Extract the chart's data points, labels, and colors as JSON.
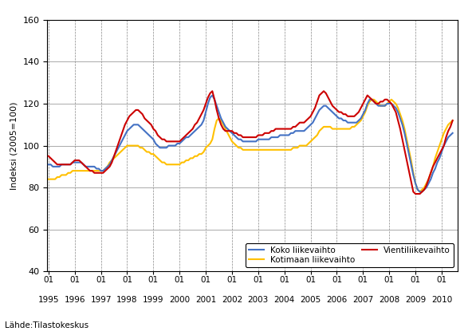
{
  "title": "",
  "ylabel": "Indeksi (2005=100)",
  "xlabel_source": "Lähde:Tilastokeskus",
  "ylim": [
    40,
    160
  ],
  "yticks": [
    40,
    60,
    80,
    100,
    120,
    140,
    160
  ],
  "start_year": 1995,
  "start_month": 1,
  "end_year": 2010,
  "end_month": 6,
  "line_colors": {
    "koko": "#4472C4",
    "kotimaan": "#FFC000",
    "vienti": "#CC0000"
  },
  "line_widths": {
    "koko": 1.5,
    "kotimaan": 1.5,
    "vienti": 1.5
  },
  "legend_labels": {
    "koko": "Koko liikevaihto",
    "kotimaan": "Kotimaan liikevaihto",
    "vienti": "Vientiliikevaihto"
  },
  "koko": [
    91,
    91,
    90,
    90,
    90,
    90,
    91,
    91,
    91,
    91,
    91,
    92,
    92,
    92,
    92,
    92,
    91,
    90,
    90,
    90,
    90,
    90,
    89,
    89,
    88,
    88,
    89,
    90,
    91,
    93,
    95,
    97,
    99,
    101,
    103,
    105,
    107,
    108,
    109,
    110,
    110,
    110,
    109,
    108,
    107,
    106,
    105,
    104,
    103,
    101,
    100,
    99,
    99,
    99,
    99,
    100,
    100,
    100,
    100,
    101,
    101,
    102,
    103,
    104,
    104,
    105,
    106,
    107,
    108,
    109,
    110,
    112,
    116,
    120,
    123,
    124,
    122,
    119,
    116,
    113,
    111,
    109,
    108,
    107,
    106,
    105,
    104,
    103,
    103,
    102,
    102,
    102,
    102,
    102,
    102,
    102,
    103,
    103,
    103,
    103,
    103,
    103,
    104,
    104,
    104,
    104,
    105,
    105,
    105,
    105,
    105,
    106,
    106,
    107,
    107,
    107,
    107,
    107,
    108,
    109,
    110,
    111,
    113,
    115,
    117,
    118,
    119,
    119,
    118,
    117,
    116,
    115,
    114,
    113,
    113,
    112,
    112,
    111,
    111,
    111,
    111,
    111,
    112,
    113,
    115,
    117,
    120,
    122,
    122,
    121,
    120,
    119,
    119,
    119,
    119,
    120,
    120,
    120,
    119,
    118,
    116,
    113,
    110,
    106,
    101,
    96,
    91,
    86,
    82,
    79,
    78,
    78,
    79,
    80,
    82,
    84,
    87,
    89,
    92,
    94,
    97,
    100,
    102,
    104,
    105,
    106
  ],
  "kotimaan": [
    84,
    84,
    84,
    84,
    85,
    85,
    86,
    86,
    86,
    87,
    87,
    88,
    88,
    88,
    88,
    88,
    88,
    88,
    88,
    88,
    88,
    88,
    88,
    88,
    88,
    88,
    89,
    90,
    92,
    93,
    94,
    95,
    96,
    97,
    98,
    99,
    100,
    100,
    100,
    100,
    100,
    100,
    99,
    99,
    98,
    97,
    97,
    96,
    96,
    95,
    94,
    93,
    92,
    92,
    91,
    91,
    91,
    91,
    91,
    91,
    91,
    92,
    92,
    93,
    93,
    94,
    94,
    95,
    95,
    96,
    96,
    97,
    99,
    100,
    101,
    103,
    108,
    112,
    113,
    112,
    110,
    108,
    106,
    104,
    102,
    101,
    100,
    99,
    99,
    98,
    98,
    98,
    98,
    98,
    98,
    98,
    98,
    98,
    98,
    98,
    98,
    98,
    98,
    98,
    98,
    98,
    98,
    98,
    98,
    98,
    98,
    98,
    99,
    99,
    99,
    100,
    100,
    100,
    100,
    101,
    102,
    103,
    104,
    105,
    107,
    108,
    109,
    109,
    109,
    109,
    108,
    108,
    108,
    108,
    108,
    108,
    108,
    108,
    108,
    109,
    109,
    110,
    111,
    112,
    114,
    116,
    119,
    121,
    122,
    122,
    121,
    120,
    119,
    119,
    119,
    120,
    121,
    122,
    121,
    120,
    118,
    115,
    112,
    108,
    103,
    98,
    93,
    87,
    82,
    79,
    78,
    79,
    80,
    82,
    84,
    87,
    90,
    94,
    97,
    100,
    103,
    106,
    108,
    110,
    111,
    112
  ],
  "vienti": [
    95,
    94,
    93,
    92,
    91,
    91,
    91,
    91,
    91,
    91,
    91,
    92,
    93,
    93,
    93,
    92,
    91,
    90,
    89,
    88,
    88,
    87,
    87,
    87,
    87,
    87,
    88,
    89,
    90,
    92,
    95,
    98,
    101,
    104,
    107,
    110,
    112,
    114,
    115,
    116,
    117,
    117,
    116,
    115,
    113,
    112,
    111,
    110,
    108,
    107,
    105,
    104,
    103,
    103,
    102,
    102,
    102,
    102,
    102,
    102,
    102,
    103,
    104,
    105,
    106,
    107,
    108,
    110,
    111,
    113,
    115,
    117,
    120,
    123,
    125,
    126,
    122,
    117,
    113,
    110,
    108,
    107,
    107,
    107,
    107,
    106,
    106,
    105,
    105,
    104,
    104,
    104,
    104,
    104,
    104,
    104,
    105,
    105,
    105,
    106,
    106,
    106,
    107,
    107,
    108,
    108,
    108,
    108,
    108,
    108,
    108,
    108,
    109,
    109,
    110,
    111,
    111,
    111,
    112,
    113,
    114,
    116,
    118,
    121,
    124,
    125,
    126,
    125,
    123,
    121,
    119,
    118,
    117,
    116,
    116,
    115,
    115,
    114,
    114,
    114,
    114,
    115,
    116,
    118,
    120,
    122,
    124,
    123,
    122,
    121,
    120,
    120,
    121,
    121,
    122,
    122,
    121,
    120,
    118,
    116,
    112,
    108,
    103,
    98,
    93,
    88,
    83,
    78,
    77,
    77,
    77,
    78,
    79,
    81,
    84,
    87,
    90,
    92,
    94,
    96,
    98,
    100,
    104,
    107,
    109,
    112
  ],
  "background_color": "#FFFFFF",
  "grid_color_h": "#888888",
  "grid_color_v": "#888888",
  "axis_color": "#000000",
  "year_labels": [
    1995,
    1996,
    1997,
    1998,
    1999,
    2000,
    2001,
    2002,
    2003,
    2004,
    2005,
    2006,
    2007,
    2008,
    2009,
    2010
  ]
}
